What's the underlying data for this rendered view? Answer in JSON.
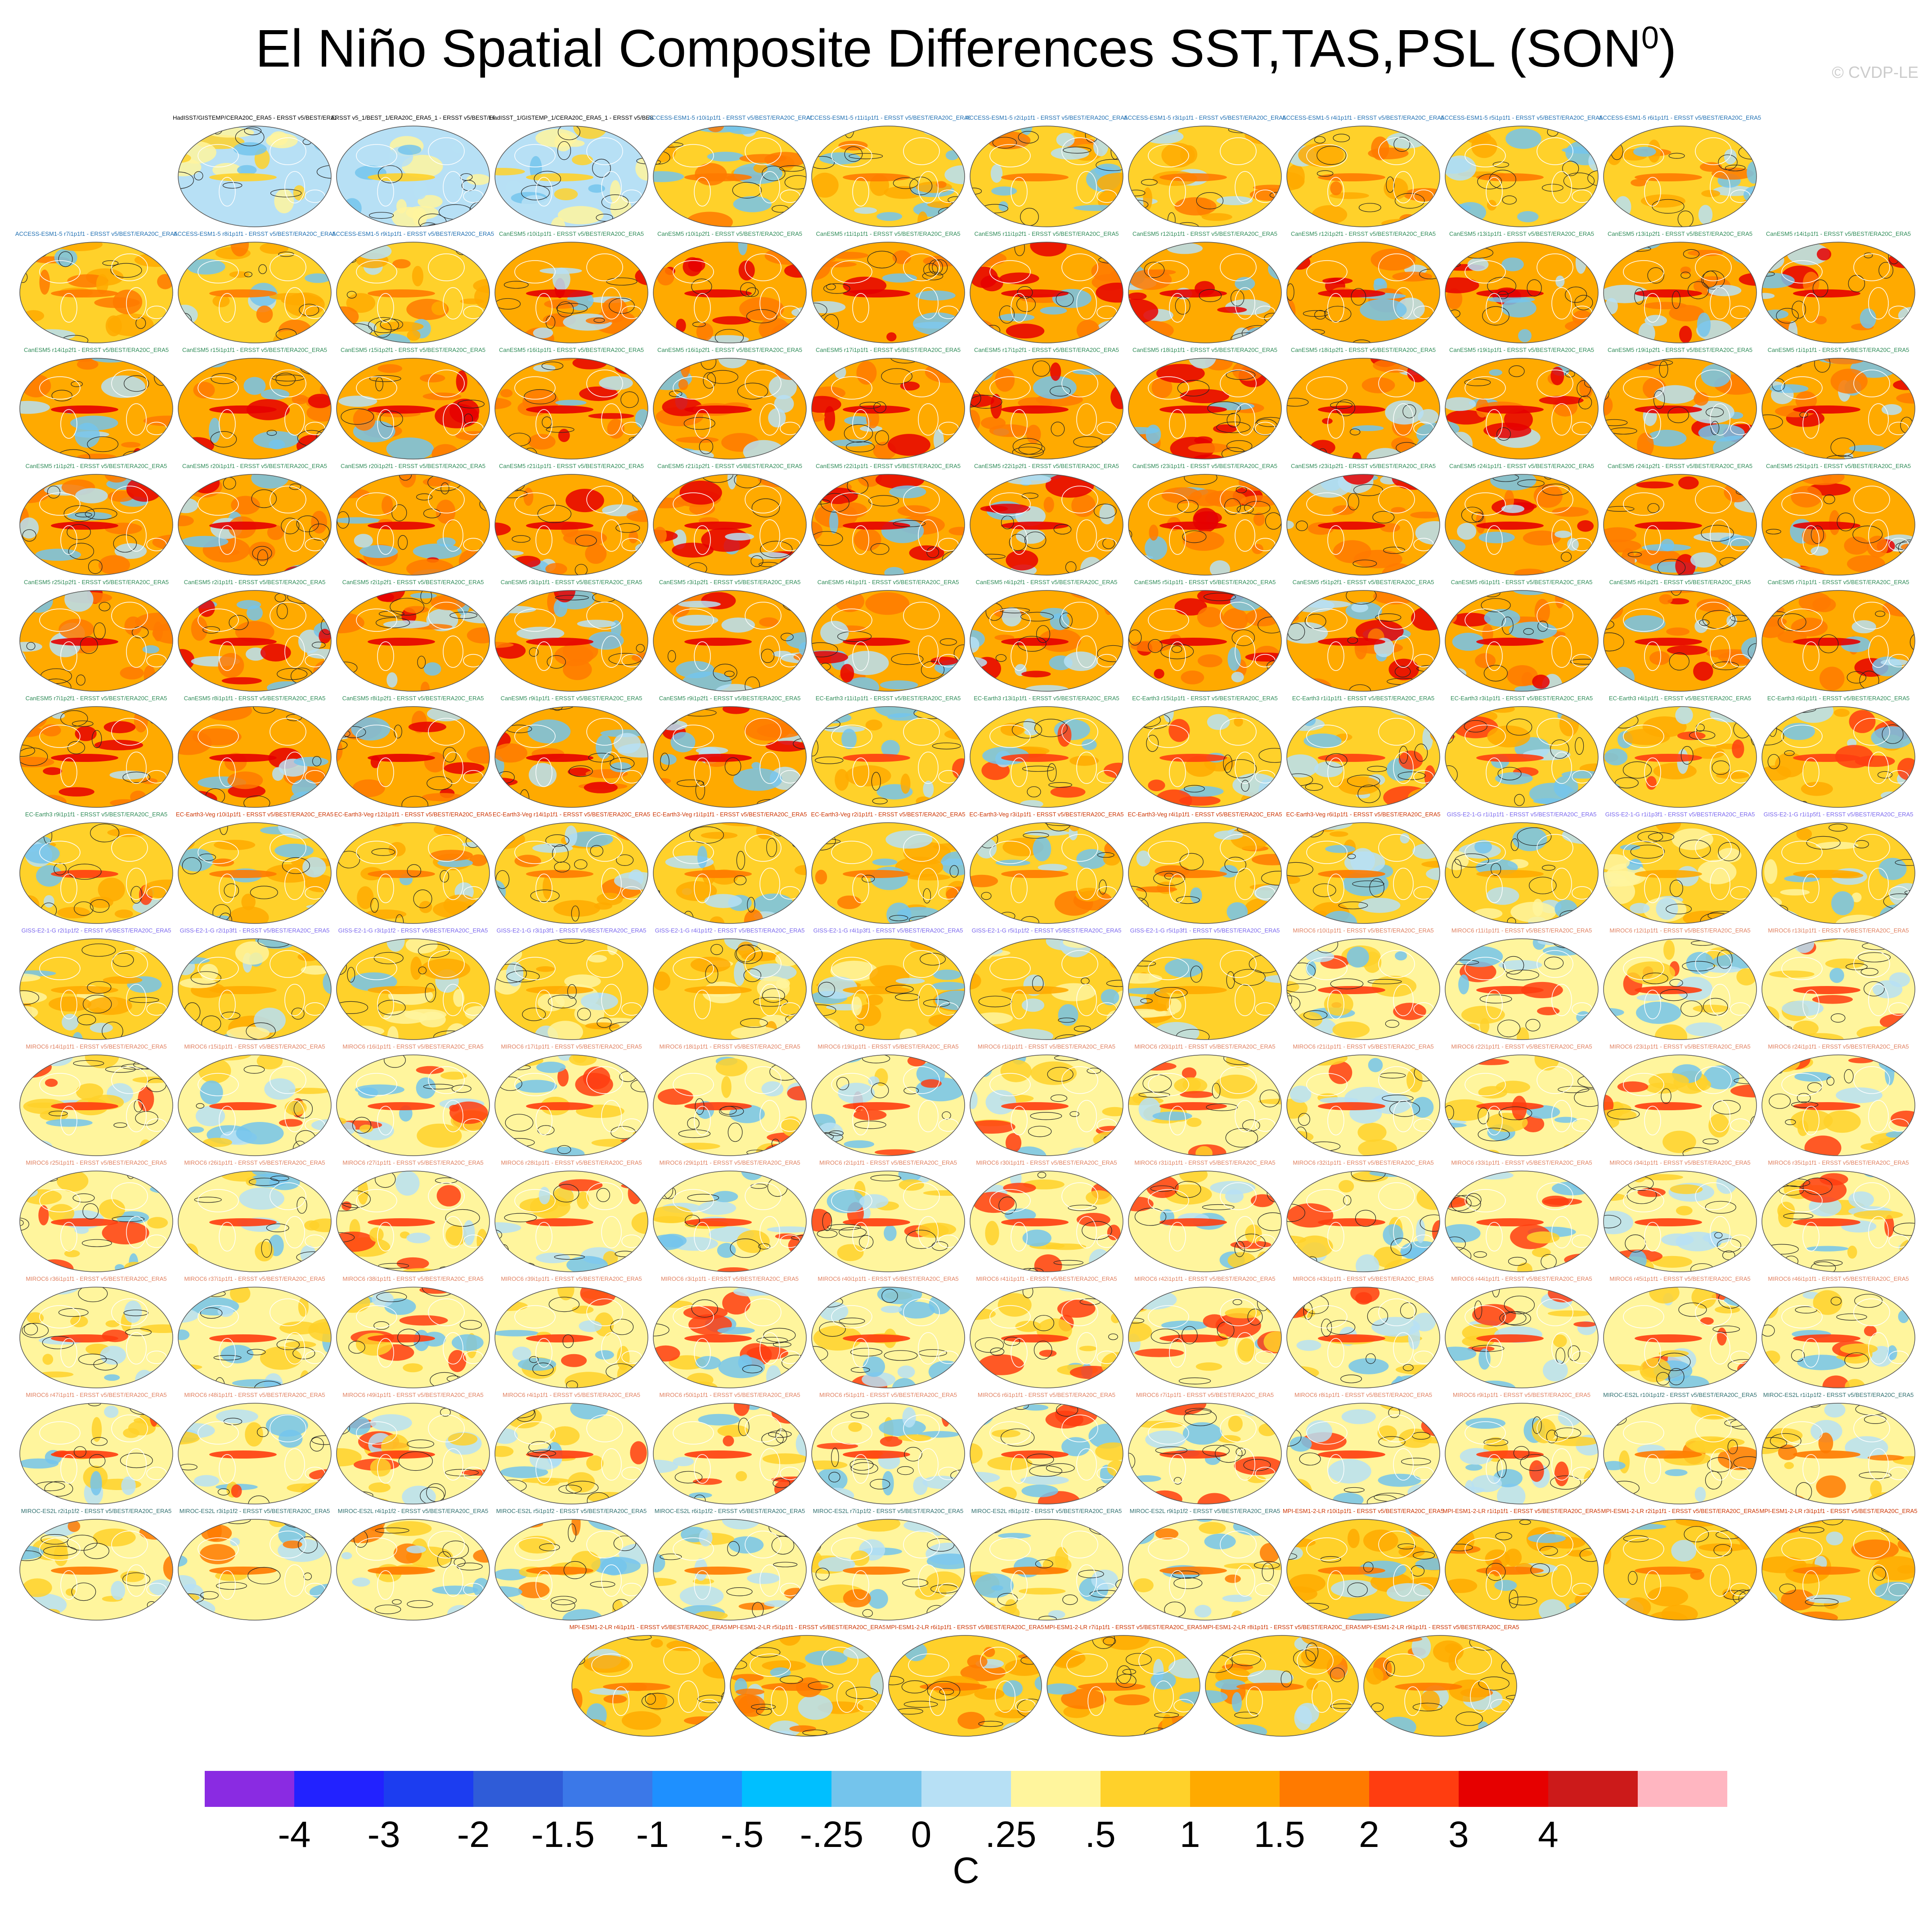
{
  "title": "El Niño Spatial Composite Differences SST,TAS,PSL (SON",
  "title_superscript": "0",
  "title_close": ")",
  "copyright": "© CVDP-LE",
  "units": "C",
  "colorbar": {
    "colors": [
      "#8a2be2",
      "#2222ff",
      "#1c3df0",
      "#2f5cd8",
      "#3b78e8",
      "#1e90ff",
      "#00bfff",
      "#74c4ec",
      "#b7e0f5",
      "#fff59d",
      "#ffd12a",
      "#ffaa00",
      "#ff7a00",
      "#ff3d10",
      "#e60000",
      "#cc1a1a",
      "#ffb6c1"
    ],
    "tick_labels": [
      "-4",
      "-3",
      "-2",
      "-1.5",
      "-1",
      "-.5",
      "-.25",
      "0",
      ".25",
      ".5",
      "1",
      "1.5",
      "2",
      "3",
      "4"
    ]
  },
  "panels": [
    {
      "label": "HadISST/GISTEMP/CERA20C_ERA5 - ERSST v5/BEST/ERA20C_ERA5",
      "group": "obs"
    },
    {
      "label": "ERSST v5_1/BEST_1/ERA20C_ERA5_1 - ERSST v5/BEST/ERA20C_ERA5",
      "group": "obs"
    },
    {
      "label": "HadISST_1/GISTEMP_1/CERA20C_ERA5_1 - ERSST v5/BEST/ERA20C_ERA5",
      "group": "obs"
    },
    {
      "label": "ACCESS-ESM1-5 r10i1p1f1 - ERSST v5/BEST/ERA20C_ERA5",
      "group": "ACCESS"
    },
    {
      "label": "ACCESS-ESM1-5 r11i1p1f1 - ERSST v5/BEST/ERA20C_ERA5",
      "group": "ACCESS"
    },
    {
      "label": "ACCESS-ESM1-5 r2i1p1f1 - ERSST v5/BEST/ERA20C_ERA5",
      "group": "ACCESS"
    },
    {
      "label": "ACCESS-ESM1-5 r3i1p1f1 - ERSST v5/BEST/ERA20C_ERA5",
      "group": "ACCESS"
    },
    {
      "label": "ACCESS-ESM1-5 r4i1p1f1 - ERSST v5/BEST/ERA20C_ERA5",
      "group": "ACCESS"
    },
    {
      "label": "ACCESS-ESM1-5 r5i1p1f1 - ERSST v5/BEST/ERA20C_ERA5",
      "group": "ACCESS"
    },
    {
      "label": "ACCESS-ESM1-5 r6i1p1f1 - ERSST v5/BEST/ERA20C_ERA5",
      "group": "ACCESS"
    },
    {
      "label": "ACCESS-ESM1-5 r7i1p1f1 - ERSST v5/BEST/ERA20C_ERA5",
      "group": "ACCESS"
    },
    {
      "label": "ACCESS-ESM1-5 r8i1p1f1 - ERSST v5/BEST/ERA20C_ERA5",
      "group": "ACCESS"
    },
    {
      "label": "ACCESS-ESM1-5 r9i1p1f1 - ERSST v5/BEST/ERA20C_ERA5",
      "group": "ACCESS"
    },
    {
      "label": "CanESM5 r10i1p1f1 - ERSST v5/BEST/ERA20C_ERA5",
      "group": "CanESM5"
    },
    {
      "label": "CanESM5 r10i1p2f1 - ERSST v5/BEST/ERA20C_ERA5",
      "group": "CanESM5"
    },
    {
      "label": "CanESM5 r11i1p1f1 - ERSST v5/BEST/ERA20C_ERA5",
      "group": "CanESM5"
    },
    {
      "label": "CanESM5 r11i1p2f1 - ERSST v5/BEST/ERA20C_ERA5",
      "group": "CanESM5"
    },
    {
      "label": "CanESM5 r12i1p1f1 - ERSST v5/BEST/ERA20C_ERA5",
      "group": "CanESM5"
    },
    {
      "label": "CanESM5 r12i1p2f1 - ERSST v5/BEST/ERA20C_ERA5",
      "group": "CanESM5"
    },
    {
      "label": "CanESM5 r13i1p1f1 - ERSST v5/BEST/ERA20C_ERA5",
      "group": "CanESM5"
    },
    {
      "label": "CanESM5 r13i1p2f1 - ERSST v5/BEST/ERA20C_ERA5",
      "group": "CanESM5"
    },
    {
      "label": "CanESM5 r14i1p1f1 - ERSST v5/BEST/ERA20C_ERA5",
      "group": "CanESM5"
    },
    {
      "label": "CanESM5 r14i1p2f1 - ERSST v5/BEST/ERA20C_ERA5",
      "group": "CanESM5"
    },
    {
      "label": "CanESM5 r15i1p1f1 - ERSST v5/BEST/ERA20C_ERA5",
      "group": "CanESM5"
    },
    {
      "label": "CanESM5 r15i1p2f1 - ERSST v5/BEST/ERA20C_ERA5",
      "group": "CanESM5"
    },
    {
      "label": "CanESM5 r16i1p1f1 - ERSST v5/BEST/ERA20C_ERA5",
      "group": "CanESM5"
    },
    {
      "label": "CanESM5 r16i1p2f1 - ERSST v5/BEST/ERA20C_ERA5",
      "group": "CanESM5"
    },
    {
      "label": "CanESM5 r17i1p1f1 - ERSST v5/BEST/ERA20C_ERA5",
      "group": "CanESM5"
    },
    {
      "label": "CanESM5 r17i1p2f1 - ERSST v5/BEST/ERA20C_ERA5",
      "group": "CanESM5"
    },
    {
      "label": "CanESM5 r18i1p1f1 - ERSST v5/BEST/ERA20C_ERA5",
      "group": "CanESM5"
    },
    {
      "label": "CanESM5 r18i1p2f1 - ERSST v5/BEST/ERA20C_ERA5",
      "group": "CanESM5"
    },
    {
      "label": "CanESM5 r19i1p1f1 - ERSST v5/BEST/ERA20C_ERA5",
      "group": "CanESM5"
    },
    {
      "label": "CanESM5 r19i1p2f1 - ERSST v5/BEST/ERA20C_ERA5",
      "group": "CanESM5"
    },
    {
      "label": "CanESM5 r1i1p1f1 - ERSST v5/BEST/ERA20C_ERA5",
      "group": "CanESM5"
    },
    {
      "label": "CanESM5 r1i1p2f1 - ERSST v5/BEST/ERA20C_ERA5",
      "group": "CanESM5"
    },
    {
      "label": "CanESM5 r20i1p1f1 - ERSST v5/BEST/ERA20C_ERA5",
      "group": "CanESM5"
    },
    {
      "label": "CanESM5 r20i1p2f1 - ERSST v5/BEST/ERA20C_ERA5",
      "group": "CanESM5"
    },
    {
      "label": "CanESM5 r21i1p1f1 - ERSST v5/BEST/ERA20C_ERA5",
      "group": "CanESM5"
    },
    {
      "label": "CanESM5 r21i1p2f1 - ERSST v5/BEST/ERA20C_ERA5",
      "group": "CanESM5"
    },
    {
      "label": "CanESM5 r22i1p1f1 - ERSST v5/BEST/ERA20C_ERA5",
      "group": "CanESM5"
    },
    {
      "label": "CanESM5 r22i1p2f1 - ERSST v5/BEST/ERA20C_ERA5",
      "group": "CanESM5"
    },
    {
      "label": "CanESM5 r23i1p1f1 - ERSST v5/BEST/ERA20C_ERA5",
      "group": "CanESM5"
    },
    {
      "label": "CanESM5 r23i1p2f1 - ERSST v5/BEST/ERA20C_ERA5",
      "group": "CanESM5"
    },
    {
      "label": "CanESM5 r24i1p1f1 - ERSST v5/BEST/ERA20C_ERA5",
      "group": "CanESM5"
    },
    {
      "label": "CanESM5 r24i1p2f1 - ERSST v5/BEST/ERA20C_ERA5",
      "group": "CanESM5"
    },
    {
      "label": "CanESM5 r25i1p1f1 - ERSST v5/BEST/ERA20C_ERA5",
      "group": "CanESM5"
    },
    {
      "label": "CanESM5 r25i1p2f1 - ERSST v5/BEST/ERA20C_ERA5",
      "group": "CanESM5"
    },
    {
      "label": "CanESM5 r2i1p1f1 - ERSST v5/BEST/ERA20C_ERA5",
      "group": "CanESM5"
    },
    {
      "label": "CanESM5 r2i1p2f1 - ERSST v5/BEST/ERA20C_ERA5",
      "group": "CanESM5"
    },
    {
      "label": "CanESM5 r3i1p1f1 - ERSST v5/BEST/ERA20C_ERA5",
      "group": "CanESM5"
    },
    {
      "label": "CanESM5 r3i1p2f1 - ERSST v5/BEST/ERA20C_ERA5",
      "group": "CanESM5"
    },
    {
      "label": "CanESM5 r4i1p1f1 - ERSST v5/BEST/ERA20C_ERA5",
      "group": "CanESM5"
    },
    {
      "label": "CanESM5 r4i1p2f1 - ERSST v5/BEST/ERA20C_ERA5",
      "group": "CanESM5"
    },
    {
      "label": "CanESM5 r5i1p1f1 - ERSST v5/BEST/ERA20C_ERA5",
      "group": "CanESM5"
    },
    {
      "label": "CanESM5 r5i1p2f1 - ERSST v5/BEST/ERA20C_ERA5",
      "group": "CanESM5"
    },
    {
      "label": "CanESM5 r6i1p1f1 - ERSST v5/BEST/ERA20C_ERA5",
      "group": "CanESM5"
    },
    {
      "label": "CanESM5 r6i1p2f1 - ERSST v5/BEST/ERA20C_ERA5",
      "group": "CanESM5"
    },
    {
      "label": "CanESM5 r7i1p1f1 - ERSST v5/BEST/ERA20C_ERA5",
      "group": "CanESM5"
    },
    {
      "label": "CanESM5 r7i1p2f1 - ERSST v5/BEST/ERA20C_ERA5",
      "group": "CanESM5"
    },
    {
      "label": "CanESM5 r8i1p1f1 - ERSST v5/BEST/ERA20C_ERA5",
      "group": "CanESM5"
    },
    {
      "label": "CanESM5 r8i1p2f1 - ERSST v5/BEST/ERA20C_ERA5",
      "group": "CanESM5"
    },
    {
      "label": "CanESM5 r9i1p1f1 - ERSST v5/BEST/ERA20C_ERA5",
      "group": "CanESM5"
    },
    {
      "label": "CanESM5 r9i1p2f1 - ERSST v5/BEST/ERA20C_ERA5",
      "group": "CanESM5"
    },
    {
      "label": "EC-Earth3 r11i1p1f1 - ERSST v5/BEST/ERA20C_ERA5",
      "group": "EC-Earth3"
    },
    {
      "label": "EC-Earth3 r13i1p1f1 - ERSST v5/BEST/ERA20C_ERA5",
      "group": "EC-Earth3"
    },
    {
      "label": "EC-Earth3 r15i1p1f1 - ERSST v5/BEST/ERA20C_ERA5",
      "group": "EC-Earth3"
    },
    {
      "label": "EC-Earth3 r1i1p1f1 - ERSST v5/BEST/ERA20C_ERA5",
      "group": "EC-Earth3"
    },
    {
      "label": "EC-Earth3 r3i1p1f1 - ERSST v5/BEST/ERA20C_ERA5",
      "group": "EC-Earth3"
    },
    {
      "label": "EC-Earth3 r4i1p1f1 - ERSST v5/BEST/ERA20C_ERA5",
      "group": "EC-Earth3"
    },
    {
      "label": "EC-Earth3 r6i1p1f1 - ERSST v5/BEST/ERA20C_ERA5",
      "group": "EC-Earth3"
    },
    {
      "label": "EC-Earth3 r9i1p1f1 - ERSST v5/BEST/ERA20C_ERA5",
      "group": "EC-Earth3"
    },
    {
      "label": "EC-Earth3-Veg r10i1p1f1 - ERSST v5/BEST/ERA20C_ERA5",
      "group": "EC-Earth3-Veg"
    },
    {
      "label": "EC-Earth3-Veg r12i1p1f1 - ERSST v5/BEST/ERA20C_ERA5",
      "group": "EC-Earth3-Veg"
    },
    {
      "label": "EC-Earth3-Veg r14i1p1f1 - ERSST v5/BEST/ERA20C_ERA5",
      "group": "EC-Earth3-Veg"
    },
    {
      "label": "EC-Earth3-Veg r1i1p1f1 - ERSST v5/BEST/ERA20C_ERA5",
      "group": "EC-Earth3-Veg"
    },
    {
      "label": "EC-Earth3-Veg r2i1p1f1 - ERSST v5/BEST/ERA20C_ERA5",
      "group": "EC-Earth3-Veg"
    },
    {
      "label": "EC-Earth3-Veg r3i1p1f1 - ERSST v5/BEST/ERA20C_ERA5",
      "group": "EC-Earth3-Veg"
    },
    {
      "label": "EC-Earth3-Veg r4i1p1f1 - ERSST v5/BEST/ERA20C_ERA5",
      "group": "EC-Earth3-Veg"
    },
    {
      "label": "EC-Earth3-Veg r6i1p1f1 - ERSST v5/BEST/ERA20C_ERA5",
      "group": "EC-Earth3-Veg"
    },
    {
      "label": "GISS-E2-1-G r1i1p1f1 - ERSST v5/BEST/ERA20C_ERA5",
      "group": "GISS"
    },
    {
      "label": "GISS-E2-1-G r1i1p3f1 - ERSST v5/BEST/ERA20C_ERA5",
      "group": "GISS"
    },
    {
      "label": "GISS-E2-1-G r1i1p5f1 - ERSST v5/BEST/ERA20C_ERA5",
      "group": "GISS"
    },
    {
      "label": "GISS-E2-1-G r2i1p1f2 - ERSST v5/BEST/ERA20C_ERA5",
      "group": "GISS"
    },
    {
      "label": "GISS-E2-1-G r2i1p3f1 - ERSST v5/BEST/ERA20C_ERA5",
      "group": "GISS"
    },
    {
      "label": "GISS-E2-1-G r3i1p1f2 - ERSST v5/BEST/ERA20C_ERA5",
      "group": "GISS"
    },
    {
      "label": "GISS-E2-1-G r3i1p3f1 - ERSST v5/BEST/ERA20C_ERA5",
      "group": "GISS"
    },
    {
      "label": "GISS-E2-1-G r4i1p1f2 - ERSST v5/BEST/ERA20C_ERA5",
      "group": "GISS"
    },
    {
      "label": "GISS-E2-1-G r4i1p3f1 - ERSST v5/BEST/ERA20C_ERA5",
      "group": "GISS"
    },
    {
      "label": "GISS-E2-1-G r5i1p1f2 - ERSST v5/BEST/ERA20C_ERA5",
      "group": "GISS"
    },
    {
      "label": "GISS-E2-1-G r5i1p3f1 - ERSST v5/BEST/ERA20C_ERA5",
      "group": "GISS"
    },
    {
      "label": "MIROC6 r10i1p1f1 - ERSST v5/BEST/ERA20C_ERA5",
      "group": "MIROC6"
    },
    {
      "label": "MIROC6 r11i1p1f1 - ERSST v5/BEST/ERA20C_ERA5",
      "group": "MIROC6"
    },
    {
      "label": "MIROC6 r12i1p1f1 - ERSST v5/BEST/ERA20C_ERA5",
      "group": "MIROC6"
    },
    {
      "label": "MIROC6 r13i1p1f1 - ERSST v5/BEST/ERA20C_ERA5",
      "group": "MIROC6"
    },
    {
      "label": "MIROC6 r14i1p1f1 - ERSST v5/BEST/ERA20C_ERA5",
      "group": "MIROC6"
    },
    {
      "label": "MIROC6 r15i1p1f1 - ERSST v5/BEST/ERA20C_ERA5",
      "group": "MIROC6"
    },
    {
      "label": "MIROC6 r16i1p1f1 - ERSST v5/BEST/ERA20C_ERA5",
      "group": "MIROC6"
    },
    {
      "label": "MIROC6 r17i1p1f1 - ERSST v5/BEST/ERA20C_ERA5",
      "group": "MIROC6"
    },
    {
      "label": "MIROC6 r18i1p1f1 - ERSST v5/BEST/ERA20C_ERA5",
      "group": "MIROC6"
    },
    {
      "label": "MIROC6 r19i1p1f1 - ERSST v5/BEST/ERA20C_ERA5",
      "group": "MIROC6"
    },
    {
      "label": "MIROC6 r1i1p1f1 - ERSST v5/BEST/ERA20C_ERA5",
      "group": "MIROC6"
    },
    {
      "label": "MIROC6 r20i1p1f1 - ERSST v5/BEST/ERA20C_ERA5",
      "group": "MIROC6"
    },
    {
      "label": "MIROC6 r21i1p1f1 - ERSST v5/BEST/ERA20C_ERA5",
      "group": "MIROC6"
    },
    {
      "label": "MIROC6 r22i1p1f1 - ERSST v5/BEST/ERA20C_ERA5",
      "group": "MIROC6"
    },
    {
      "label": "MIROC6 r23i1p1f1 - ERSST v5/BEST/ERA20C_ERA5",
      "group": "MIROC6"
    },
    {
      "label": "MIROC6 r24i1p1f1 - ERSST v5/BEST/ERA20C_ERA5",
      "group": "MIROC6"
    },
    {
      "label": "MIROC6 r25i1p1f1 - ERSST v5/BEST/ERA20C_ERA5",
      "group": "MIROC6"
    },
    {
      "label": "MIROC6 r26i1p1f1 - ERSST v5/BEST/ERA20C_ERA5",
      "group": "MIROC6"
    },
    {
      "label": "MIROC6 r27i1p1f1 - ERSST v5/BEST/ERA20C_ERA5",
      "group": "MIROC6"
    },
    {
      "label": "MIROC6 r28i1p1f1 - ERSST v5/BEST/ERA20C_ERA5",
      "group": "MIROC6"
    },
    {
      "label": "MIROC6 r29i1p1f1 - ERSST v5/BEST/ERA20C_ERA5",
      "group": "MIROC6"
    },
    {
      "label": "MIROC6 r2i1p1f1 - ERSST v5/BEST/ERA20C_ERA5",
      "group": "MIROC6"
    },
    {
      "label": "MIROC6 r30i1p1f1 - ERSST v5/BEST/ERA20C_ERA5",
      "group": "MIROC6"
    },
    {
      "label": "MIROC6 r31i1p1f1 - ERSST v5/BEST/ERA20C_ERA5",
      "group": "MIROC6"
    },
    {
      "label": "MIROC6 r32i1p1f1 - ERSST v5/BEST/ERA20C_ERA5",
      "group": "MIROC6"
    },
    {
      "label": "MIROC6 r33i1p1f1 - ERSST v5/BEST/ERA20C_ERA5",
      "group": "MIROC6"
    },
    {
      "label": "MIROC6 r34i1p1f1 - ERSST v5/BEST/ERA20C_ERA5",
      "group": "MIROC6"
    },
    {
      "label": "MIROC6 r35i1p1f1 - ERSST v5/BEST/ERA20C_ERA5",
      "group": "MIROC6"
    },
    {
      "label": "MIROC6 r36i1p1f1 - ERSST v5/BEST/ERA20C_ERA5",
      "group": "MIROC6"
    },
    {
      "label": "MIROC6 r37i1p1f1 - ERSST v5/BEST/ERA20C_ERA5",
      "group": "MIROC6"
    },
    {
      "label": "MIROC6 r38i1p1f1 - ERSST v5/BEST/ERA20C_ERA5",
      "group": "MIROC6"
    },
    {
      "label": "MIROC6 r39i1p1f1 - ERSST v5/BEST/ERA20C_ERA5",
      "group": "MIROC6"
    },
    {
      "label": "MIROC6 r3i1p1f1 - ERSST v5/BEST/ERA20C_ERA5",
      "group": "MIROC6"
    },
    {
      "label": "MIROC6 r40i1p1f1 - ERSST v5/BEST/ERA20C_ERA5",
      "group": "MIROC6"
    },
    {
      "label": "MIROC6 r41i1p1f1 - ERSST v5/BEST/ERA20C_ERA5",
      "group": "MIROC6"
    },
    {
      "label": "MIROC6 r42i1p1f1 - ERSST v5/BEST/ERA20C_ERA5",
      "group": "MIROC6"
    },
    {
      "label": "MIROC6 r43i1p1f1 - ERSST v5/BEST/ERA20C_ERA5",
      "group": "MIROC6"
    },
    {
      "label": "MIROC6 r44i1p1f1 - ERSST v5/BEST/ERA20C_ERA5",
      "group": "MIROC6"
    },
    {
      "label": "MIROC6 r45i1p1f1 - ERSST v5/BEST/ERA20C_ERA5",
      "group": "MIROC6"
    },
    {
      "label": "MIROC6 r46i1p1f1 - ERSST v5/BEST/ERA20C_ERA5",
      "group": "MIROC6"
    },
    {
      "label": "MIROC6 r47i1p1f1 - ERSST v5/BEST/ERA20C_ERA5",
      "group": "MIROC6"
    },
    {
      "label": "MIROC6 r48i1p1f1 - ERSST v5/BEST/ERA20C_ERA5",
      "group": "MIROC6"
    },
    {
      "label": "MIROC6 r49i1p1f1 - ERSST v5/BEST/ERA20C_ERA5",
      "group": "MIROC6"
    },
    {
      "label": "MIROC6 r4i1p1f1 - ERSST v5/BEST/ERA20C_ERA5",
      "group": "MIROC6"
    },
    {
      "label": "MIROC6 r50i1p1f1 - ERSST v5/BEST/ERA20C_ERA5",
      "group": "MIROC6"
    },
    {
      "label": "MIROC6 r5i1p1f1 - ERSST v5/BEST/ERA20C_ERA5",
      "group": "MIROC6"
    },
    {
      "label": "MIROC6 r6i1p1f1 - ERSST v5/BEST/ERA20C_ERA5",
      "group": "MIROC6"
    },
    {
      "label": "MIROC6 r7i1p1f1 - ERSST v5/BEST/ERA20C_ERA5",
      "group": "MIROC6"
    },
    {
      "label": "MIROC6 r8i1p1f1 - ERSST v5/BEST/ERA20C_ERA5",
      "group": "MIROC6"
    },
    {
      "label": "MIROC6 r9i1p1f1 - ERSST v5/BEST/ERA20C_ERA5",
      "group": "MIROC6"
    },
    {
      "label": "MIROC-ES2L r10i1p1f2 - ERSST v5/BEST/ERA20C_ERA5",
      "group": "MIROC-ES2L"
    },
    {
      "label": "MIROC-ES2L r1i1p1f2 - ERSST v5/BEST/ERA20C_ERA5",
      "group": "MIROC-ES2L"
    },
    {
      "label": "MIROC-ES2L r2i1p1f2 - ERSST v5/BEST/ERA20C_ERA5",
      "group": "MIROC-ES2L"
    },
    {
      "label": "MIROC-ES2L r3i1p1f2 - ERSST v5/BEST/ERA20C_ERA5",
      "group": "MIROC-ES2L"
    },
    {
      "label": "MIROC-ES2L r4i1p1f2 - ERSST v5/BEST/ERA20C_ERA5",
      "group": "MIROC-ES2L"
    },
    {
      "label": "MIROC-ES2L r5i1p1f2 - ERSST v5/BEST/ERA20C_ERA5",
      "group": "MIROC-ES2L"
    },
    {
      "label": "MIROC-ES2L r6i1p1f2 - ERSST v5/BEST/ERA20C_ERA5",
      "group": "MIROC-ES2L"
    },
    {
      "label": "MIROC-ES2L r7i1p1f2 - ERSST v5/BEST/ERA20C_ERA5",
      "group": "MIROC-ES2L"
    },
    {
      "label": "MIROC-ES2L r8i1p1f2 - ERSST v5/BEST/ERA20C_ERA5",
      "group": "MIROC-ES2L"
    },
    {
      "label": "MIROC-ES2L r9i1p1f2 - ERSST v5/BEST/ERA20C_ERA5",
      "group": "MIROC-ES2L"
    },
    {
      "label": "MPI-ESM1-2-LR r10i1p1f1 - ERSST v5/BEST/ERA20C_ERA5",
      "group": "MPI"
    },
    {
      "label": "MPI-ESM1-2-LR r1i1p1f1 - ERSST v5/BEST/ERA20C_ERA5",
      "group": "MPI"
    },
    {
      "label": "MPI-ESM1-2-LR r2i1p1f1 - ERSST v5/BEST/ERA20C_ERA5",
      "group": "MPI"
    },
    {
      "label": "MPI-ESM1-2-LR r3i1p1f1 - ERSST v5/BEST/ERA20C_ERA5",
      "group": "MPI"
    },
    {
      "label": "MPI-ESM1-2-LR r4i1p1f1 - ERSST v5/BEST/ERA20C_ERA5",
      "group": "MPI"
    },
    {
      "label": "MPI-ESM1-2-LR r5i1p1f1 - ERSST v5/BEST/ERA20C_ERA5",
      "group": "MPI"
    },
    {
      "label": "MPI-ESM1-2-LR r6i1p1f1 - ERSST v5/BEST/ERA20C_ERA5",
      "group": "MPI"
    },
    {
      "label": "MPI-ESM1-2-LR r7i1p1f1 - ERSST v5/BEST/ERA20C_ERA5",
      "group": "MPI"
    },
    {
      "label": "MPI-ESM1-2-LR r8i1p1f1 - ERSST v5/BEST/ERA20C_ERA5",
      "group": "MPI"
    },
    {
      "label": "MPI-ESM1-2-LR r9i1p1f1 - ERSST v5/BEST/ERA20C_ERA5",
      "group": "MPI"
    }
  ],
  "group_styles": {
    "obs": {
      "label_color": "#000000",
      "base": "#b7e0f5",
      "accent": "#fff59d",
      "hot": "#ffd12a"
    },
    "ACCESS": {
      "label_color": "#1f6fb2",
      "base": "#ffd12a",
      "accent": "#ffaa00",
      "hot": "#ff7a00"
    },
    "CanESM5": {
      "label_color": "#2e8b57",
      "base": "#ffaa00",
      "accent": "#ff7a00",
      "hot": "#e60000"
    },
    "EC-Earth3": {
      "label_color": "#2e8b57",
      "base": "#ffd12a",
      "accent": "#ffaa00",
      "hot": "#ff3d10"
    },
    "EC-Earth3-Veg": {
      "label_color": "#cc3300",
      "base": "#ffd12a",
      "accent": "#ffaa00",
      "hot": "#ff7a00"
    },
    "GISS": {
      "label_color": "#7b68ee",
      "base": "#ffd12a",
      "accent": "#fff59d",
      "hot": "#ffaa00"
    },
    "MIROC6": {
      "label_color": "#e08060",
      "base": "#fff59d",
      "accent": "#ffd12a",
      "hot": "#ff3d10"
    },
    "MIROC-ES2L": {
      "label_color": "#2f6f6f",
      "base": "#fff59d",
      "accent": "#ffd12a",
      "hot": "#ff7a00"
    },
    "MPI": {
      "label_color": "#cc3300",
      "base": "#ffd12a",
      "accent": "#ffaa00",
      "hot": "#ff7a00"
    }
  }
}
